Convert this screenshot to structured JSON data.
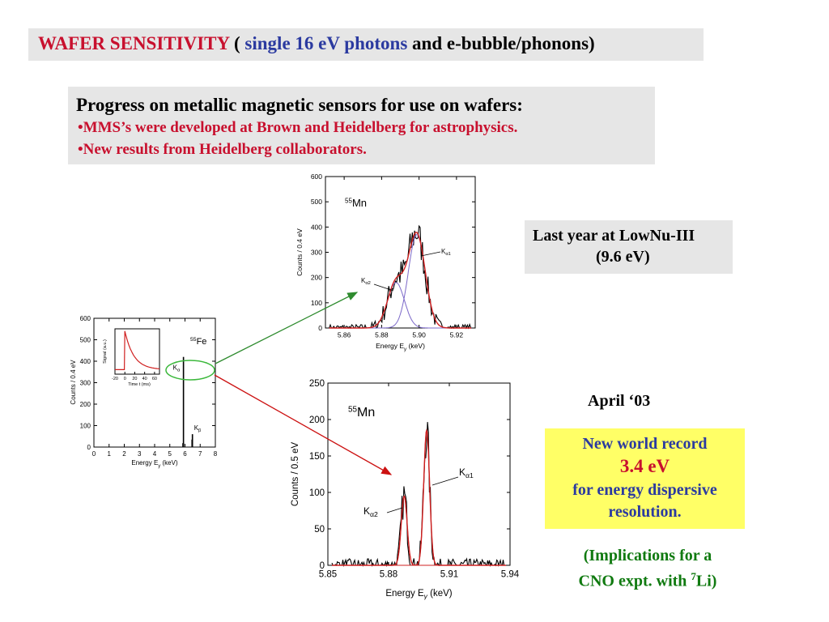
{
  "header": {
    "part1": "WAFER SENSITIVITY",
    "part2": " ( ",
    "part3": "single 16 eV photons",
    "part4": " and e-bubble/phonons)"
  },
  "progress_box": {
    "title": "Progress on metallic magnetic sensors for use on wafers:",
    "bullet1": "•MMS’s were developed at Brown and Heidelberg for astrophysics.",
    "bullet2": "•New results from Heidelberg collaborators."
  },
  "last_year_box": {
    "line1": "Last year at LowNu-III",
    "line2": "(9.6 eV)"
  },
  "april": "April ‘03",
  "record_box": {
    "line1": "New world record",
    "line2": "3.4 eV",
    "line3": "for energy dispersive",
    "line4": "resolution."
  },
  "implications": {
    "line1": "(Implications for a",
    "line2a": "CNO expt. with ",
    "line2sup": "7",
    "line2b": "Li)"
  },
  "colors": {
    "title_red": "#c8102e",
    "blue": "#2b3aa0",
    "green_text": "#107a10",
    "gray_box": "#e6e6e6",
    "yellow_box": "#ffff66",
    "arrow_green": "#2e8b2e",
    "arrow_red": "#cc1111",
    "fit_red": "#d02020",
    "component_purple": "#7b68c8"
  },
  "chart_data": [
    {
      "id": "fe55",
      "type": "line",
      "label": "55Fe",
      "xlabel_main": "Energy E",
      "xlabel_sub": "γ",
      "xlabel_unit": " (keV)",
      "ylabel": "Counts / 0.4 eV",
      "xlim": [
        0,
        8
      ],
      "ylim": [
        0,
        600
      ],
      "xticks": [
        0,
        1,
        2,
        3,
        4,
        5,
        6,
        7,
        8
      ],
      "yticks": [
        0,
        100,
        200,
        300,
        400,
        500,
        600
      ],
      "peaks": [
        {
          "name": "Kα",
          "x": 5.9,
          "y": 420
        },
        {
          "name": "Kβ",
          "x": 6.49,
          "y": 60
        }
      ],
      "peak_labels": [
        "K",
        "α",
        "K",
        "β"
      ],
      "inset": {
        "xlabel": "Time  t (ms)",
        "ylabel": "Signal (a.u.)",
        "xticks": [
          -20,
          0,
          20,
          40,
          60
        ],
        "xlim": [
          -20,
          70
        ],
        "pulse": {
          "baseline": 0.1,
          "rise_at": 0,
          "peak": 0.95,
          "decay_ms": 18
        }
      }
    },
    {
      "id": "mn55_lastyear",
      "type": "line",
      "label": "55Mn",
      "xlabel_main": "Energy E",
      "xlabel_sub": "γ",
      "xlabel_unit": " (keV)",
      "ylabel": "Counts / 0.4 eV",
      "xlim": [
        5.85,
        5.93
      ],
      "ylim": [
        0,
        600
      ],
      "xticks": [
        5.86,
        5.88,
        5.9,
        5.92
      ],
      "ytick_labels": [
        "5.86",
        "5.88",
        "5.90",
        "5.92"
      ],
      "yticks": [
        0,
        100,
        200,
        300,
        400,
        500,
        600
      ],
      "components": [
        {
          "name": "Kα1",
          "center": 5.8988,
          "sigma": 0.0045,
          "amplitude": 370
        },
        {
          "name": "Kα2",
          "center": 5.8877,
          "sigma": 0.0045,
          "amplitude": 180
        }
      ],
      "component_labels": [
        "K",
        "α1",
        "K",
        "α2"
      ]
    },
    {
      "id": "mn55_april03",
      "type": "line",
      "label": "55Mn",
      "xlabel_main": "Energy E",
      "xlabel_sub": "γ",
      "xlabel_unit": " (keV)",
      "ylabel": "Counts / 0.5 eV",
      "xlim": [
        5.85,
        5.94
      ],
      "ylim": [
        0,
        250
      ],
      "xticks": [
        5.85,
        5.88,
        5.91,
        5.94
      ],
      "yticks": [
        0,
        50,
        100,
        150,
        200,
        250
      ],
      "components": [
        {
          "name": "Kα1",
          "center": 5.8988,
          "sigma": 0.00145,
          "amplitude": 185
        },
        {
          "name": "Kα2",
          "center": 5.8877,
          "sigma": 0.00145,
          "amplitude": 95
        }
      ],
      "component_labels": [
        "K",
        "α1",
        "K",
        "α2"
      ]
    }
  ]
}
